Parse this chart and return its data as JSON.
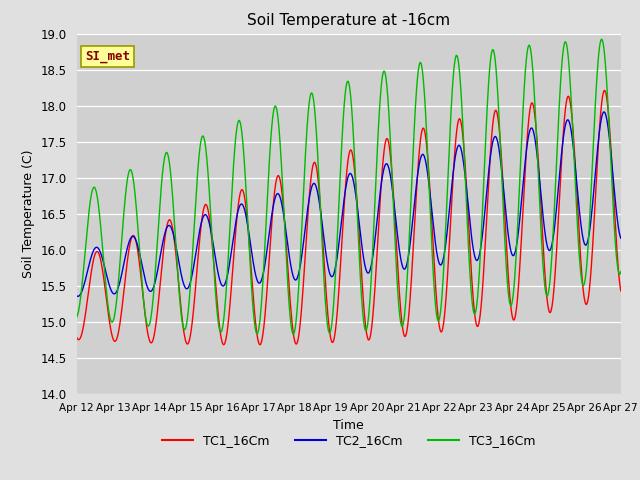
{
  "title": "Soil Temperature at -16cm",
  "xlabel": "Time",
  "ylabel": "Soil Temperature (C)",
  "ylim": [
    14.0,
    19.0
  ],
  "yticks": [
    14.0,
    14.5,
    15.0,
    15.5,
    16.0,
    16.5,
    17.0,
    17.5,
    18.0,
    18.5,
    19.0
  ],
  "xtick_labels": [
    "Apr 12",
    "Apr 13",
    "Apr 14",
    "Apr 15",
    "Apr 16",
    "Apr 17",
    "Apr 18",
    "Apr 19",
    "Apr 20",
    "Apr 21",
    "Apr 22",
    "Apr 23",
    "Apr 24",
    "Apr 25",
    "Apr 26",
    "Apr 27"
  ],
  "legend_labels": [
    "TC1_16Cm",
    "TC2_16Cm",
    "TC3_16Cm"
  ],
  "line_colors": [
    "#ff0000",
    "#0000dd",
    "#00bb00"
  ],
  "bg_color": "#e0e0e0",
  "plot_bg_color": "#d0d0d0",
  "annotation_text": "SI_met",
  "annotation_bg": "#ffff99",
  "annotation_border": "#999900",
  "annotation_color": "#880000"
}
